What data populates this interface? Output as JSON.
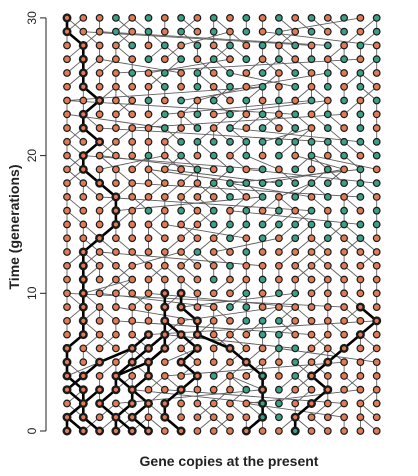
{
  "chart_data": {
    "type": "scatter",
    "title": "",
    "xlabel": "Gene copies at the present",
    "ylabel": "Time (generations)",
    "yticks": [
      0,
      10,
      20,
      30
    ],
    "ylim": [
      0,
      30
    ],
    "columns": 20,
    "grid": false,
    "colors": {
      "orange": "#E07B58",
      "green": "#3E9E86",
      "link": "#5f5f5f",
      "lineage": "#000000",
      "axis": "#222222"
    },
    "green_cells": [
      [
        14,
        0
      ],
      [
        12,
        1
      ],
      [
        13,
        1
      ],
      [
        12,
        2
      ],
      [
        13,
        2
      ],
      [
        11,
        3
      ],
      [
        13,
        3
      ],
      [
        9,
        4
      ],
      [
        12,
        4
      ],
      [
        14,
        4
      ],
      [
        14,
        5
      ],
      [
        14,
        6
      ],
      [
        13,
        6
      ],
      [
        12,
        7
      ],
      [
        13,
        7
      ],
      [
        11,
        8
      ],
      [
        12,
        8
      ],
      [
        13,
        8
      ],
      [
        10,
        9
      ],
      [
        11,
        9
      ],
      [
        11,
        10
      ],
      [
        13,
        10
      ],
      [
        14,
        10
      ],
      [
        12,
        11
      ],
      [
        9,
        11
      ],
      [
        10,
        12
      ],
      [
        8,
        13
      ],
      [
        11,
        13
      ],
      [
        10,
        14
      ],
      [
        10,
        15
      ],
      [
        9,
        15
      ],
      [
        5,
        16
      ],
      [
        10,
        17
      ],
      [
        10,
        18
      ],
      [
        9,
        18
      ],
      [
        8,
        19
      ],
      [
        5,
        20
      ],
      [
        9,
        20
      ],
      [
        8,
        21
      ],
      [
        7,
        21
      ],
      [
        6,
        22
      ],
      [
        6,
        23
      ],
      [
        5,
        24
      ],
      [
        6,
        25
      ],
      [
        4,
        26
      ],
      [
        5,
        27
      ],
      [
        4,
        28
      ],
      [
        3,
        29
      ],
      [
        3,
        30
      ]
    ],
    "lineage_paths": [
      [
        [
          0,
          0
        ],
        [
          0,
          1
        ],
        [
          1,
          2
        ],
        [
          1,
          3
        ],
        [
          0,
          4
        ],
        [
          0,
          5
        ],
        [
          0,
          6
        ],
        [
          1,
          7
        ],
        [
          1,
          8
        ],
        [
          1,
          9
        ],
        [
          1,
          10
        ],
        [
          1,
          11
        ],
        [
          1,
          12
        ],
        [
          1,
          13
        ],
        [
          2,
          14
        ],
        [
          3,
          15
        ],
        [
          3,
          16
        ],
        [
          3,
          17
        ],
        [
          2,
          18
        ],
        [
          1,
          19
        ],
        [
          1,
          20
        ],
        [
          2,
          21
        ],
        [
          1,
          22
        ],
        [
          1,
          23
        ],
        [
          2,
          24
        ],
        [
          1,
          25
        ],
        [
          1,
          26
        ],
        [
          1,
          27
        ],
        [
          1,
          28
        ],
        [
          0,
          29
        ],
        [
          0,
          30
        ]
      ],
      [
        [
          3,
          0
        ],
        [
          3,
          1
        ],
        [
          4,
          2
        ],
        [
          4,
          3
        ],
        [
          3,
          4
        ],
        [
          5,
          5
        ],
        [
          6,
          6
        ],
        [
          6,
          7
        ],
        [
          6,
          8
        ],
        [
          6,
          9
        ],
        [
          6,
          10
        ]
      ],
      [
        [
          4,
          0
        ],
        [
          3,
          1
        ],
        [
          2,
          2
        ],
        [
          3,
          3
        ],
        [
          3,
          4
        ],
        [
          4,
          5
        ],
        [
          5,
          6
        ],
        [
          6,
          7
        ]
      ],
      [
        [
          5,
          0
        ],
        [
          4,
          1
        ],
        [
          5,
          2
        ],
        [
          4,
          3
        ],
        [
          5,
          4
        ],
        [
          5,
          5
        ],
        [
          6,
          6
        ]
      ],
      [
        [
          7,
          0
        ],
        [
          6,
          1
        ],
        [
          6,
          2
        ],
        [
          7,
          3
        ],
        [
          8,
          4
        ],
        [
          7,
          5
        ],
        [
          8,
          6
        ],
        [
          7,
          7
        ],
        [
          6,
          8
        ]
      ],
      [
        [
          11,
          0
        ],
        [
          12,
          1
        ],
        [
          12,
          2
        ],
        [
          12,
          3
        ],
        [
          12,
          4
        ],
        [
          11,
          5
        ],
        [
          10,
          6
        ],
        [
          8,
          7
        ],
        [
          8,
          8
        ],
        [
          7,
          9
        ],
        [
          7,
          10
        ]
      ],
      [
        [
          14,
          0
        ],
        [
          14,
          1
        ],
        [
          15,
          2
        ],
        [
          16,
          3
        ],
        [
          15,
          4
        ],
        [
          16,
          5
        ],
        [
          17,
          6
        ],
        [
          18,
          7
        ],
        [
          19,
          8
        ],
        [
          18,
          9
        ]
      ],
      [
        [
          2,
          0
        ],
        [
          1,
          1
        ],
        [
          1,
          2
        ],
        [
          0,
          3
        ],
        [
          1,
          4
        ],
        [
          2,
          5
        ],
        [
          4,
          6
        ],
        [
          5,
          7
        ]
      ],
      [
        [
          1,
          0
        ],
        [
          0,
          1
        ],
        [
          1,
          2
        ],
        [
          2,
          3
        ]
      ]
    ]
  }
}
